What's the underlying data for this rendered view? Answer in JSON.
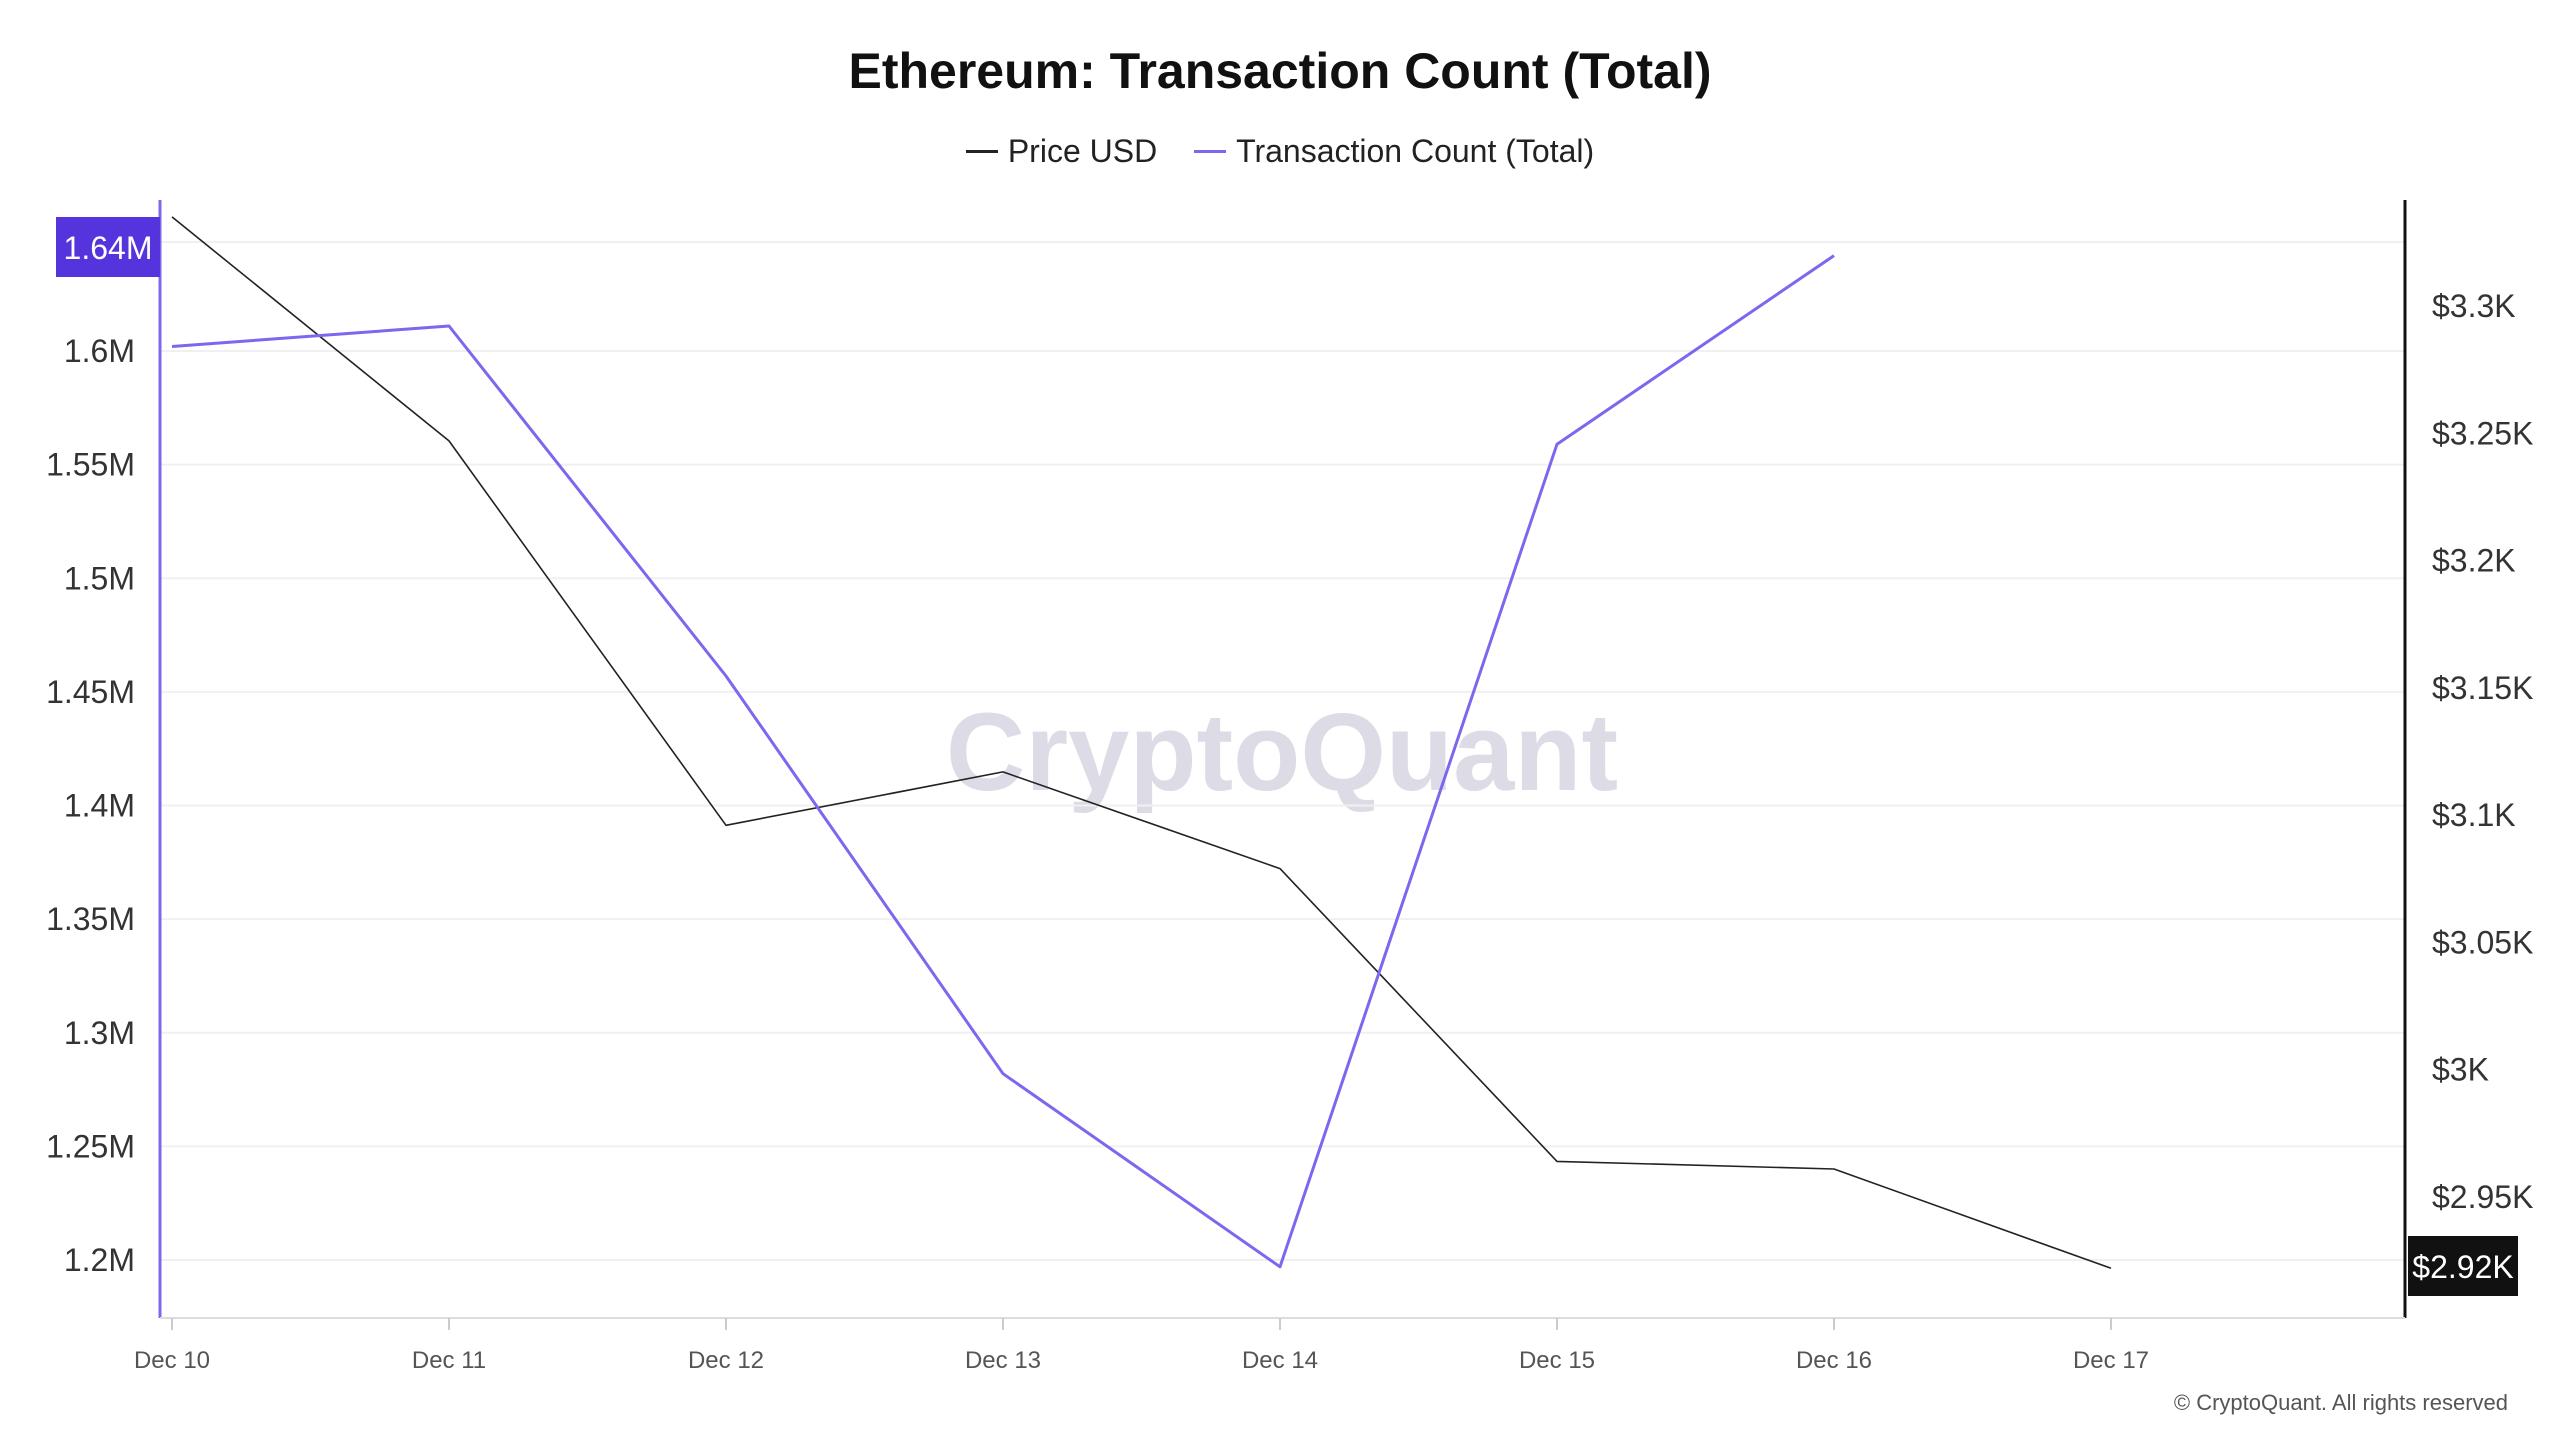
{
  "chart_data": {
    "type": "line",
    "title": "Ethereum: Transaction Count (Total)",
    "x": [
      "Dec 10",
      "Dec 11",
      "Dec 12",
      "Dec 13",
      "Dec 14",
      "Dec 15",
      "Dec 16",
      "Dec 17"
    ],
    "series": [
      {
        "name": "Price USD",
        "axis": "right",
        "color": "#222222",
        "values": [
          3335,
          3247,
          3096,
          3117,
          3079,
          2964,
          2961,
          2922
        ]
      },
      {
        "name": "Transaction Count (Total)",
        "axis": "left",
        "color": "#7b68ee",
        "values": [
          1602000,
          1611000,
          1457000,
          1282000,
          1197000,
          1559000,
          1642000,
          null
        ]
      }
    ],
    "left_axis": {
      "ticks": [
        1200000,
        1250000,
        1300000,
        1350000,
        1400000,
        1450000,
        1500000,
        1550000,
        1600000
      ],
      "tick_labels": [
        "1.2M",
        "1.25M",
        "1.3M",
        "1.35M",
        "1.4M",
        "1.45M",
        "1.5M",
        "1.55M",
        "1.6M"
      ],
      "current_label": "1.64M",
      "current_value": 1642000,
      "label_color": "#5533dd"
    },
    "right_axis": {
      "ticks": [
        2950,
        3000,
        3050,
        3100,
        3150,
        3200,
        3250,
        3300
      ],
      "tick_labels": [
        "$2.95K",
        "$3K",
        "$3.05K",
        "$3.1K",
        "$3.15K",
        "$3.2K",
        "$3.25K",
        "$3.3K"
      ],
      "current_label": "$2.92K",
      "current_value": 2922,
      "label_color": "#111111"
    },
    "grid": true,
    "legend": "top-center"
  },
  "watermark": "CryptoQuant",
  "copyright": "© CryptoQuant. All rights reserved"
}
